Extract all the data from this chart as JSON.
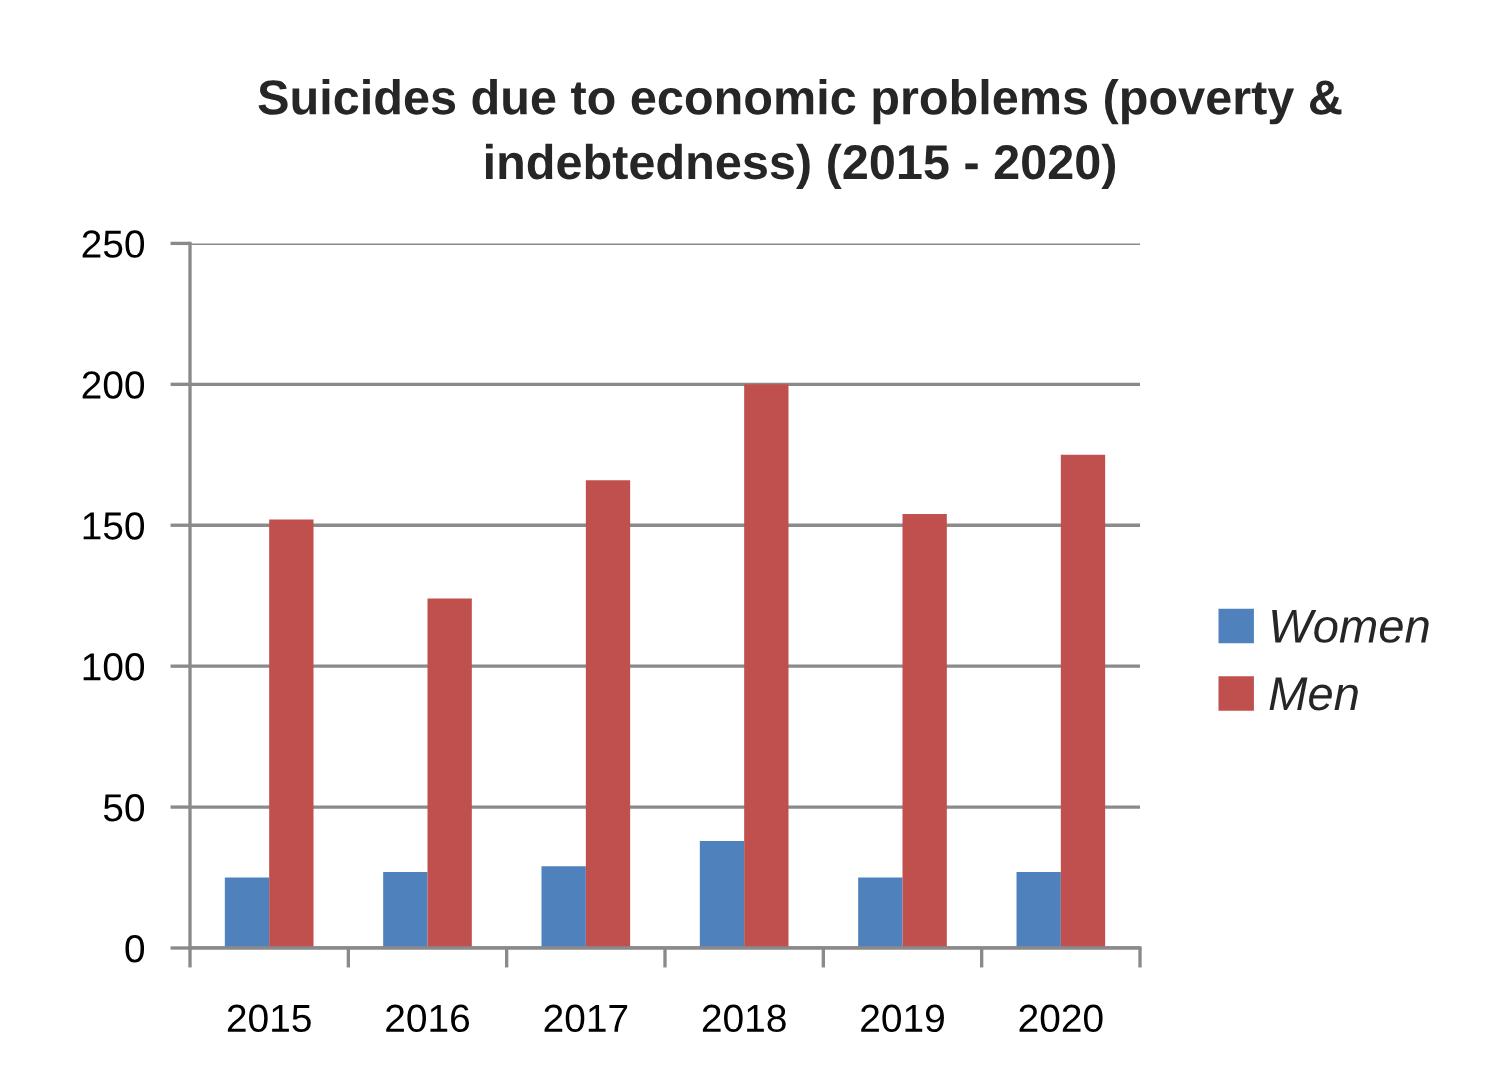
{
  "chart_data": {
    "type": "bar",
    "title": "Suicides due to economic problems (poverty & indebtedness) (2015 - 2020)",
    "categories": [
      "2015",
      "2016",
      "2017",
      "2018",
      "2019",
      "2020"
    ],
    "series": [
      {
        "name": "Women",
        "color": "#4f81bd",
        "values": [
          25,
          27,
          29,
          38,
          25,
          27
        ]
      },
      {
        "name": "Men",
        "color": "#c0504d",
        "values": [
          152,
          124,
          166,
          200,
          154,
          175
        ]
      }
    ],
    "ylim": [
      0,
      250
    ],
    "yticks": [
      0,
      50,
      100,
      150,
      200,
      250
    ],
    "grid": "y",
    "legend": "right"
  }
}
